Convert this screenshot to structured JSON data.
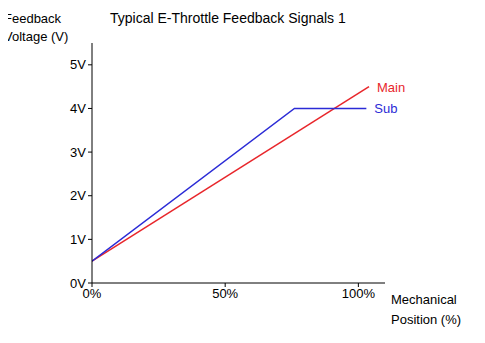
{
  "chart_data": {
    "type": "line",
    "title": "Typical E-Throttle Feedback Signals 1",
    "x_label": "Mechanical Position (%)",
    "y_label": "Feedback Voltage (V)",
    "xlim": [
      0,
      110
    ],
    "xticks": [
      {
        "value": 0,
        "label": "0%"
      },
      {
        "value": 50,
        "label": "50%"
      },
      {
        "value": 100,
        "label": "100%"
      }
    ],
    "ylim": [
      0,
      5.5
    ],
    "yticks": [
      {
        "value": 0,
        "label": "0V"
      },
      {
        "value": 1,
        "label": "1V"
      },
      {
        "value": 2,
        "label": "2V"
      },
      {
        "value": 3,
        "label": "3V"
      },
      {
        "value": 4,
        "label": "4V"
      },
      {
        "value": 5,
        "label": "5V"
      }
    ],
    "grid": false,
    "series": [
      {
        "name": "Main",
        "color": "#e8262b",
        "x": [
          0,
          104
        ],
        "values": [
          0.5,
          4.5
        ]
      },
      {
        "name": "Sub",
        "color": "#2b2bd6",
        "x": [
          0,
          76,
          103
        ],
        "values": [
          0.5,
          4.0,
          4.0
        ]
      }
    ]
  }
}
